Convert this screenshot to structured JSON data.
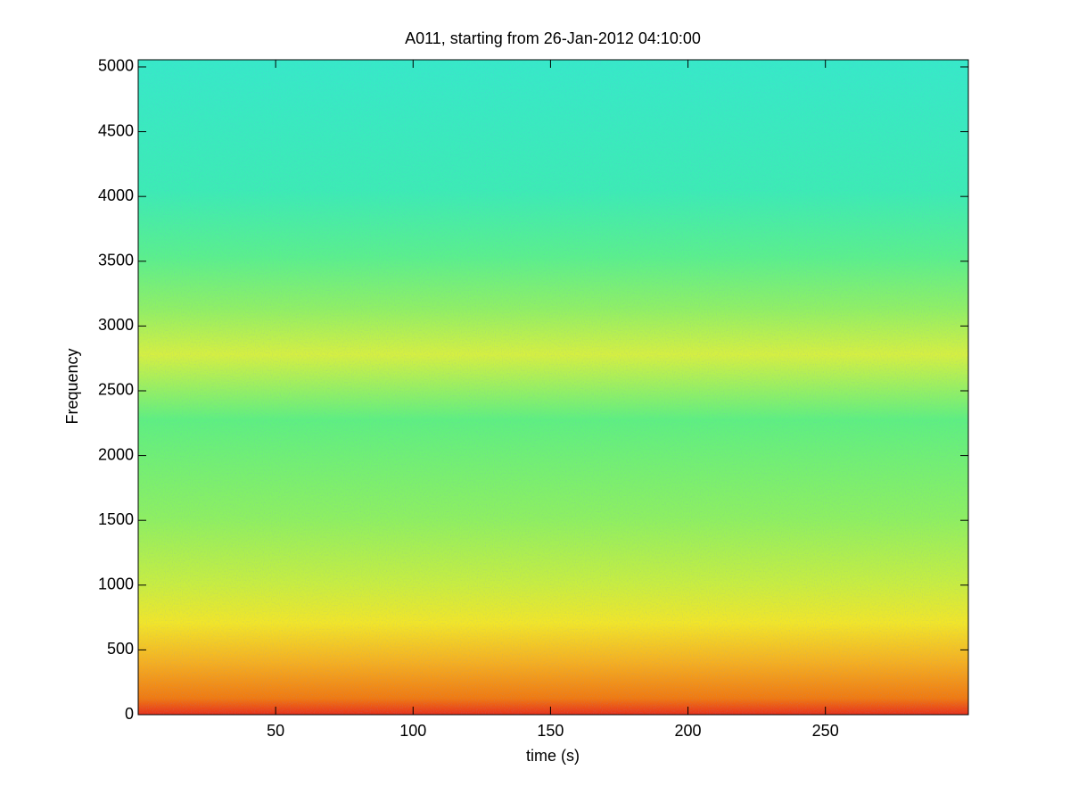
{
  "chart_data": {
    "type": "spectrogram",
    "title": "A011, starting from 26-Jan-2012 04:10:00",
    "x_label": "time (s)",
    "y_label": "Frequency",
    "xlim": [
      0,
      302
    ],
    "xticks": [
      50,
      100,
      150,
      200,
      250
    ],
    "ylim": [
      0,
      5055
    ],
    "yticks": [
      0,
      500,
      1000,
      1500,
      2000,
      2500,
      3000,
      3500,
      4000,
      4500,
      5000
    ]
  }
}
